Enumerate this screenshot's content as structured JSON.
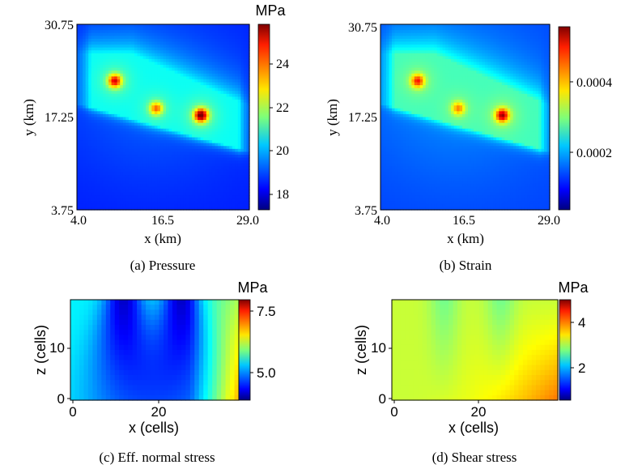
{
  "chart_data": [
    {
      "type": "heatmap",
      "caption": "(a) Pressure",
      "xlabel": "x (km)",
      "ylabel": "y (km)",
      "xticks": [
        "4.0",
        "16.5",
        "29.0"
      ],
      "yticks": [
        "30.75",
        "17.25",
        "3.75"
      ],
      "xlim": [
        4.0,
        29.0
      ],
      "ylim": [
        3.75,
        30.75
      ],
      "colorbar": {
        "label": "MPa",
        "ticks": [
          "24",
          "22",
          "20",
          "18"
        ],
        "range": [
          17.2,
          25.8
        ]
      },
      "colormap": "jet",
      "features": {
        "background": 18.5,
        "band_level": 20.6,
        "hotspots": [
          {
            "x": 9.5,
            "y": 22.5,
            "value": 24.5
          },
          {
            "x": 15.5,
            "y": 18.5,
            "value": 23.5
          },
          {
            "x": 22.0,
            "y": 17.5,
            "value": 25.5
          }
        ]
      }
    },
    {
      "type": "heatmap",
      "caption": "(b) Strain",
      "xlabel": "x (km)",
      "ylabel": "y (km)",
      "xticks": [
        "4.0",
        "16.5",
        "29.0"
      ],
      "yticks": [
        "30.75",
        "17.25",
        "3.75"
      ],
      "xlim": [
        4.0,
        29.0
      ],
      "ylim": [
        3.75,
        30.75
      ],
      "colorbar": {
        "label": "",
        "ticks": [
          "0.0004",
          "0.0002"
        ],
        "range": [
          2e-05,
          0.00055
        ]
      },
      "colormap": "jet",
      "features": {
        "background": 0.00012,
        "band_level": 0.00026,
        "hotspots": [
          {
            "x": 9.5,
            "y": 22.5,
            "value": 0.00045
          },
          {
            "x": 15.5,
            "y": 18.5,
            "value": 0.0004
          },
          {
            "x": 22.0,
            "y": 17.5,
            "value": 0.0005
          }
        ]
      }
    },
    {
      "type": "heatmap",
      "caption": "(c) Eff. normal stress",
      "xlabel": "x (cells)",
      "ylabel": "z (cells)",
      "xticks": [
        "0",
        "20"
      ],
      "yticks": [
        "10",
        "0"
      ],
      "xlim": [
        0,
        38
      ],
      "ylim": [
        0,
        19
      ],
      "colorbar": {
        "label": "MPa",
        "ticks": [
          "7.5",
          "5.0"
        ],
        "range": [
          3.6,
          8.0
        ]
      },
      "colormap": "jet",
      "features": {
        "low_columns": [
          12,
          25
        ],
        "right_gradient_max": 6.8
      }
    },
    {
      "type": "heatmap",
      "caption": "(d) Shear stress",
      "xlabel": "x (cells)",
      "ylabel": "z (cells)",
      "xticks": [
        "0",
        "20"
      ],
      "yticks": [
        "10",
        "0"
      ],
      "xlim": [
        0,
        38
      ],
      "ylim": [
        0,
        19
      ],
      "colorbar": {
        "label": "MPa",
        "ticks": [
          "4",
          "2"
        ],
        "range": [
          0.6,
          4.8
        ]
      },
      "colormap": "jet",
      "features": {
        "base": 3.0,
        "corner_max": 3.8
      }
    }
  ]
}
